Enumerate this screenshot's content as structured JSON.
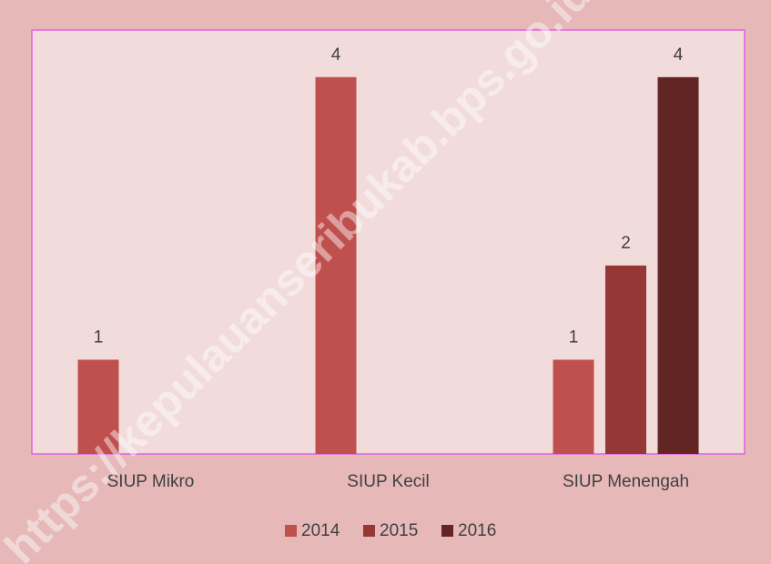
{
  "chart_data": {
    "type": "bar",
    "categories": [
      "SIUP Mikro",
      "SIUP Kecil",
      "SIUP Menengah"
    ],
    "series": [
      {
        "name": "2014",
        "color": "#c0504d",
        "values": [
          1,
          4,
          1
        ]
      },
      {
        "name": "2015",
        "color": "#953735",
        "values": [
          null,
          null,
          2
        ]
      },
      {
        "name": "2016",
        "color": "#632523",
        "values": [
          null,
          null,
          4
        ]
      }
    ],
    "ylim": [
      0,
      4.5
    ],
    "legend": "bottom",
    "watermark": "https://kepulauanseribukab.bps.go.id"
  }
}
